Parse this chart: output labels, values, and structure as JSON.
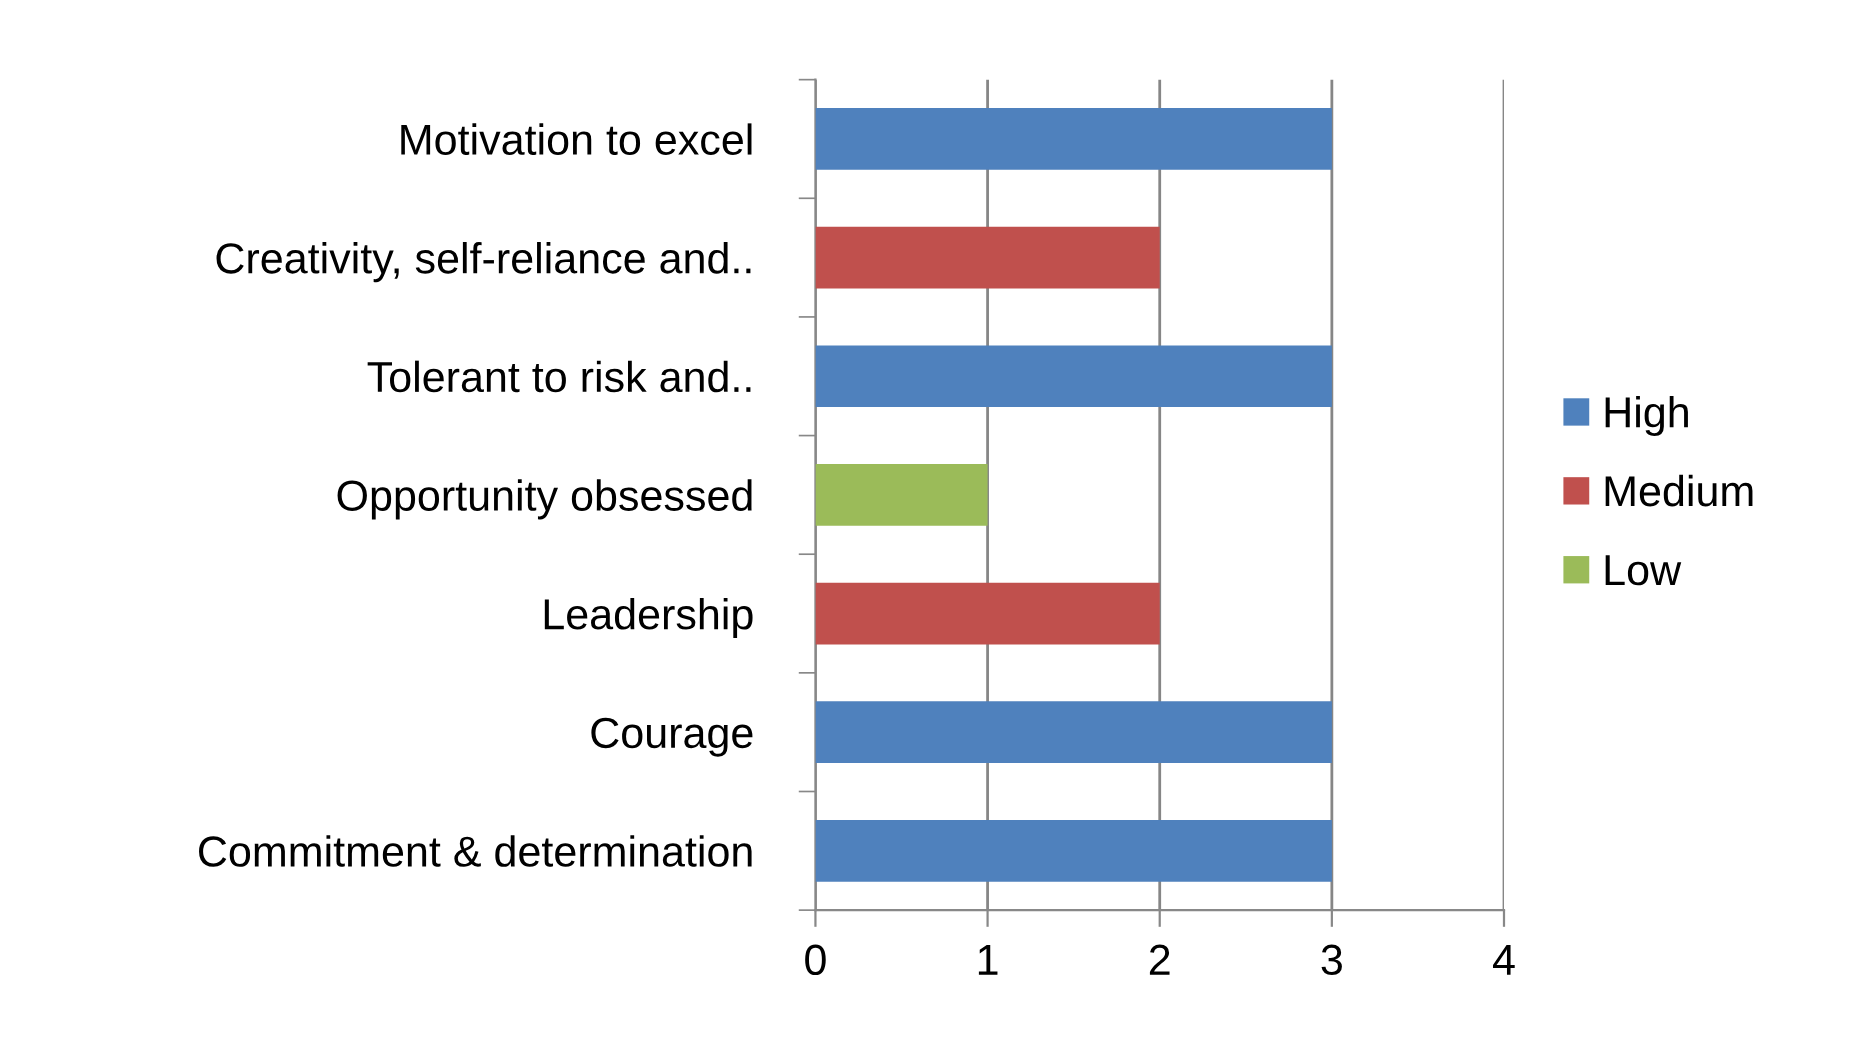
{
  "chart_data": {
    "type": "bar",
    "orientation": "horizontal",
    "categories": [
      "Motivation to excel",
      "Creativity, self-reliance and..",
      "Tolerant to risk and..",
      "Opportunity obsessed",
      "Leadership",
      "Courage",
      "Commitment & determination"
    ],
    "series": [
      {
        "name": "High",
        "color": "#4f81bd",
        "values": [
          3,
          null,
          3,
          null,
          null,
          3,
          3
        ]
      },
      {
        "name": "Medium",
        "color": "#c0504d",
        "values": [
          null,
          2,
          null,
          null,
          2,
          null,
          null
        ]
      },
      {
        "name": "Low",
        "color": "#9bbb59",
        "values": [
          null,
          null,
          null,
          1,
          null,
          null,
          null
        ]
      }
    ],
    "xlim": [
      0,
      4
    ],
    "xticks": [
      0,
      1,
      2,
      3,
      4
    ],
    "grid": "x",
    "legend": "right"
  }
}
